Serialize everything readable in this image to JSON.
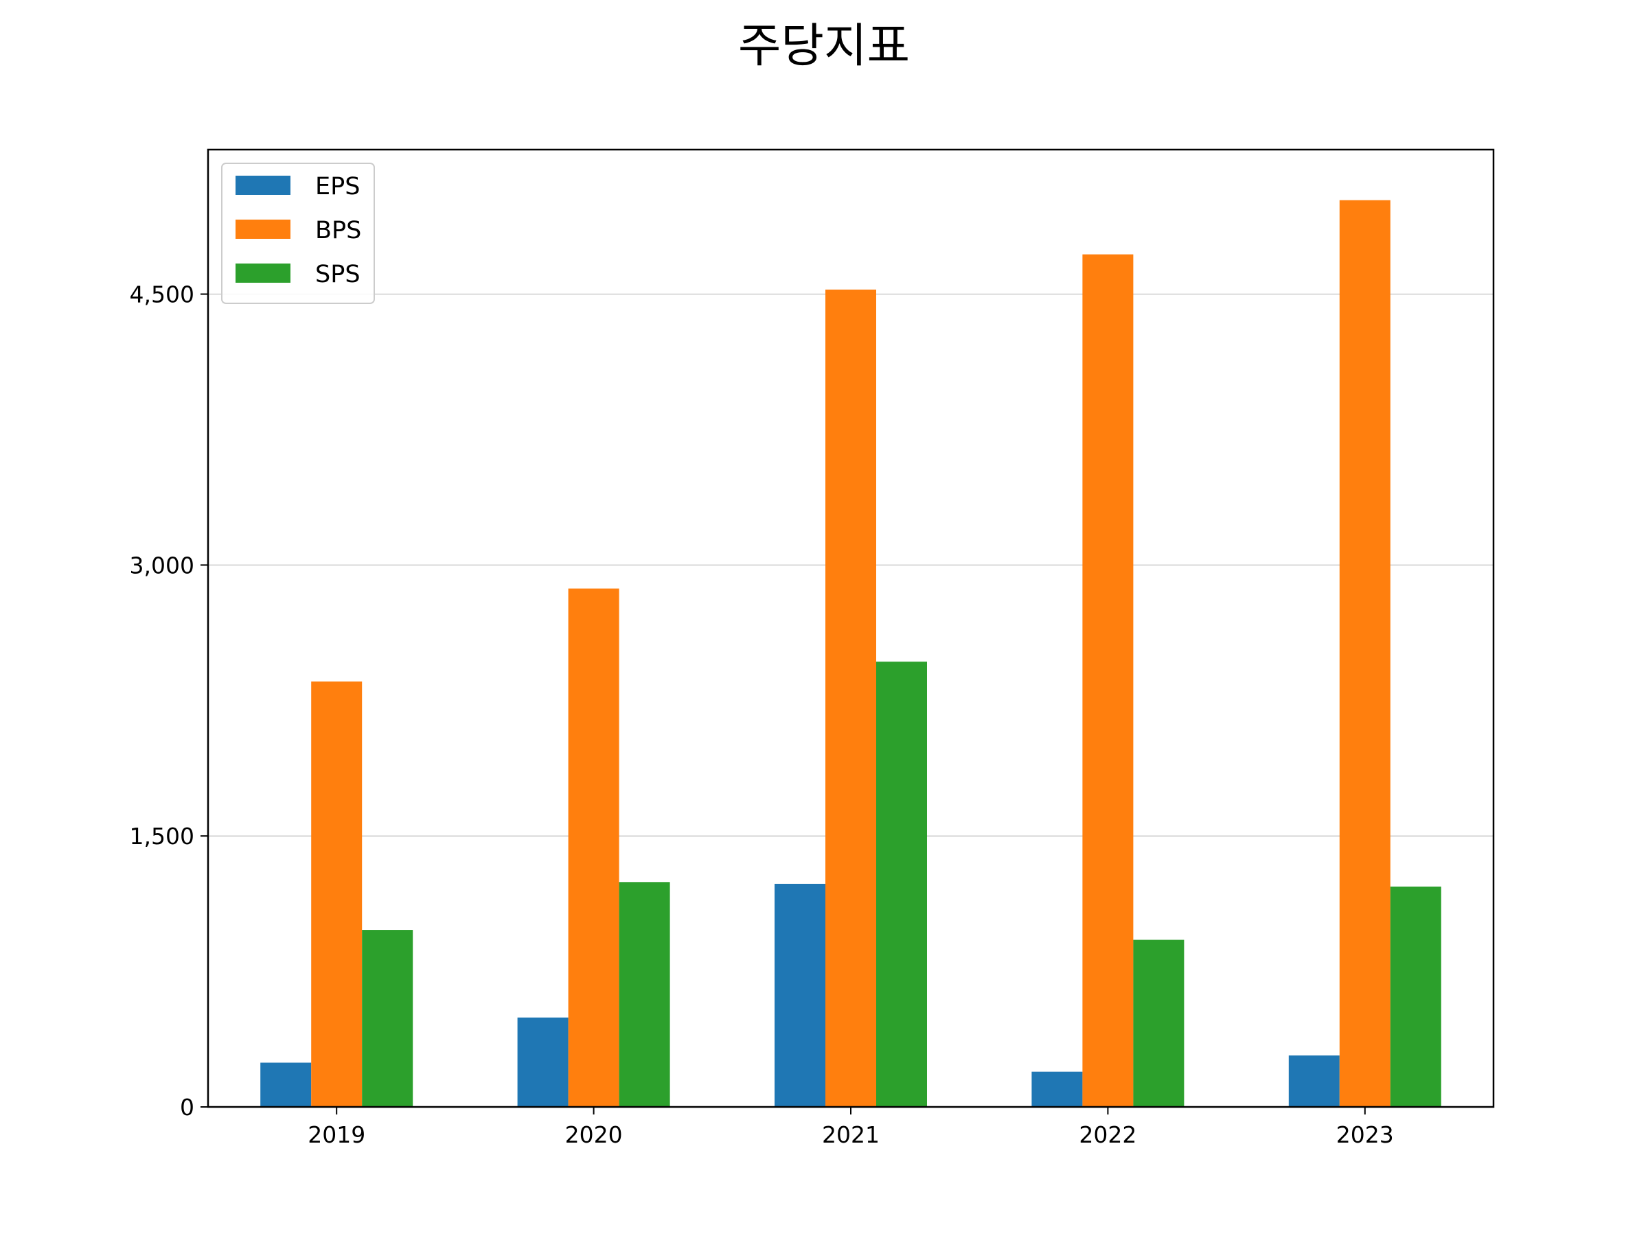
{
  "chart_data": {
    "type": "bar",
    "title": "주당지표",
    "xlabel": "",
    "ylabel": "",
    "categories": [
      "2019",
      "2020",
      "2021",
      "2022",
      "2023"
    ],
    "series": [
      {
        "name": "EPS",
        "color": "#1f77b4",
        "values": [
          245,
          495,
          1235,
          195,
          285
        ]
      },
      {
        "name": "BPS",
        "color": "#ff7f0e",
        "values": [
          2355,
          2870,
          4525,
          4720,
          5020
        ]
      },
      {
        "name": "SPS",
        "color": "#2ca02c",
        "values": [
          980,
          1245,
          2465,
          925,
          1220
        ]
      }
    ],
    "ylim": [
      0,
      5300
    ],
    "yticks": [
      0,
      1500,
      3000,
      4500
    ],
    "ytick_labels": [
      "0",
      "1,500",
      "3,000",
      "4,500"
    ],
    "grid": "horizontal",
    "legend": "top-left"
  }
}
